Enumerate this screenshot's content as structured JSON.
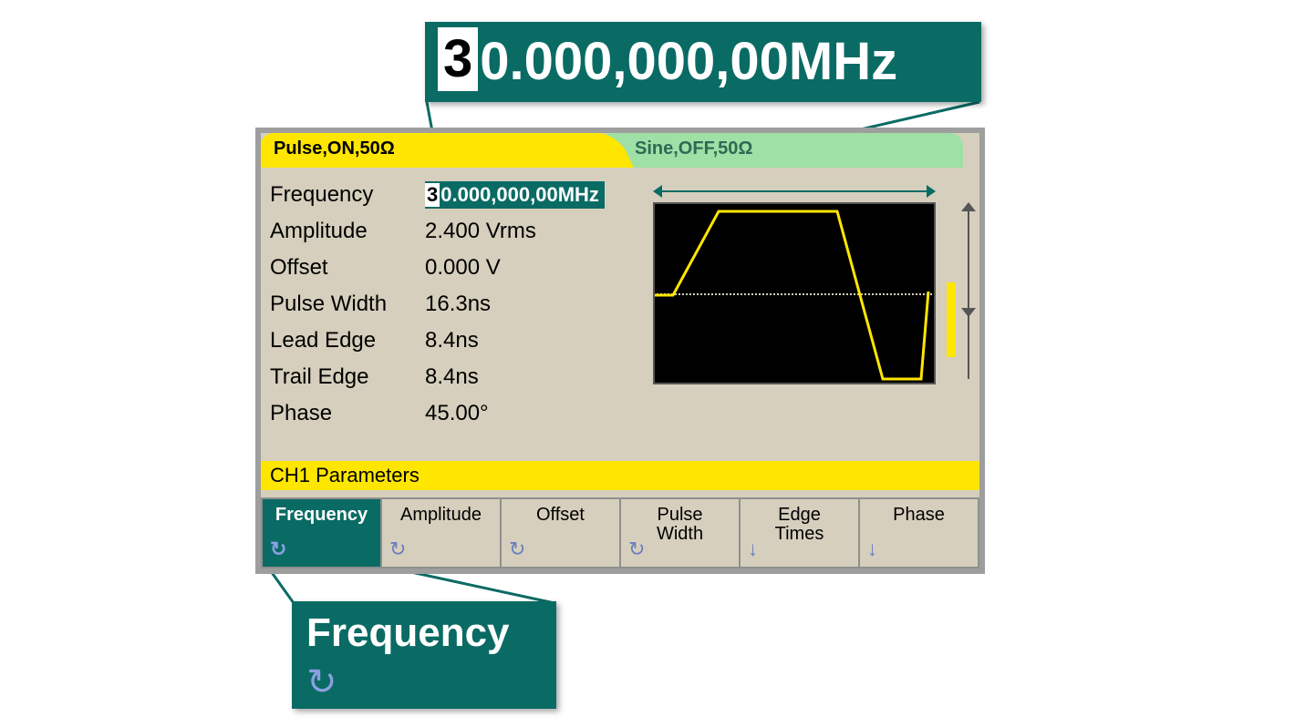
{
  "colors": {
    "panel_border": "#9e9e9e",
    "panel_bg": "#d6cfbd",
    "accent_yellow": "#ffe600",
    "tab_inactive_bg": "#9fe0a6",
    "tab_inactive_text": "#2b6b55",
    "teal": "#0a6b64",
    "softkey_icon": "#6a7ebf",
    "waveform_stroke": "#ffe600",
    "wave_bg": "#000000"
  },
  "tabs": {
    "active": "Pulse,ON,50Ω",
    "inactive": "Sine,OFF,50Ω"
  },
  "params": {
    "frequency_label": "Frequency",
    "frequency_cursor_digit": "3",
    "frequency_rest": "0.000,000,00MHz",
    "amplitude_label": "Amplitude",
    "amplitude_value": "2.400 Vrms",
    "offset_label": "Offset",
    "offset_value": "0.000 V",
    "pulsewidth_label": "Pulse Width",
    "pulsewidth_value": "16.3ns",
    "leadedge_label": "Lead Edge",
    "leadedge_value": "8.4ns",
    "trailedge_label": "Trail Edge",
    "trailedge_value": "8.4ns",
    "phase_label": "Phase",
    "phase_value": "45.00°"
  },
  "status_strip": "CH1 Parameters",
  "softkeys": [
    {
      "label": "Frequency",
      "icon": "cycle",
      "active": true
    },
    {
      "label": "Amplitude",
      "icon": "cycle",
      "active": false
    },
    {
      "label": "Offset",
      "icon": "cycle",
      "active": false
    },
    {
      "label": "Pulse",
      "label2": "Width",
      "icon": "cycle",
      "active": false
    },
    {
      "label": "Edge",
      "label2": "Times",
      "icon": "down",
      "active": false
    },
    {
      "label": "Phase",
      "icon": "down",
      "active": false
    }
  ],
  "callouts": {
    "freq_cursor_digit": "3",
    "freq_rest": "0.000,000,00MHz",
    "softkey_label": "Frequency"
  },
  "waveform": {
    "type": "pulse",
    "points": [
      [
        0,
        100
      ],
      [
        20,
        100
      ],
      [
        70,
        8
      ],
      [
        200,
        8
      ],
      [
        250,
        192
      ],
      [
        292,
        192
      ],
      [
        300,
        96
      ]
    ],
    "stroke_width": 3
  }
}
